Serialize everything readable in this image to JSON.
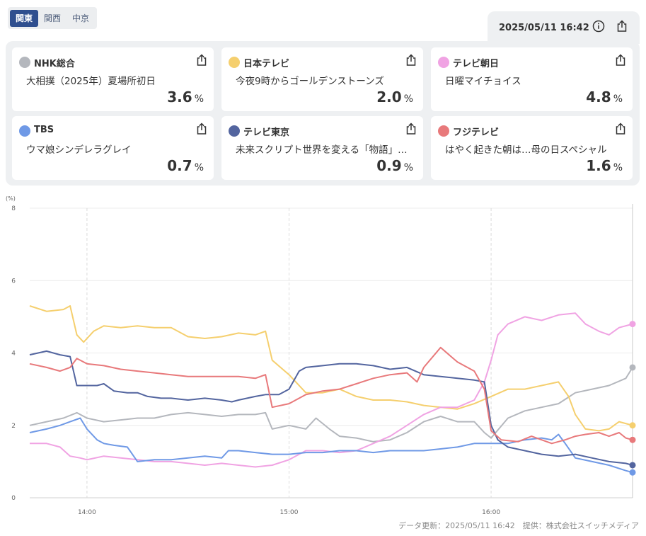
{
  "regions": [
    {
      "label": "関東",
      "active": true
    },
    {
      "label": "関西",
      "active": false
    },
    {
      "label": "中京",
      "active": false
    }
  ],
  "timestamp": "2025/05/11 16:42",
  "icons": {
    "info": "info-icon",
    "share": "share-icon"
  },
  "channels": [
    {
      "name": "NHK総合",
      "program": "大相撲（2025年）夏場所初日",
      "rating": "3.6",
      "color": "#b4b7bd"
    },
    {
      "name": "日本テレビ",
      "program": "今夜9時からゴールデンストーンズ",
      "rating": "2.0",
      "color": "#f5cf6e"
    },
    {
      "name": "テレビ朝日",
      "program": "日曜マイチョイス",
      "rating": "4.8",
      "color": "#f0a3e3"
    },
    {
      "name": "TBS",
      "program": "ウマ娘シンデレラグレイ",
      "rating": "0.7",
      "color": "#6f99e6"
    },
    {
      "name": "テレビ東京",
      "program": "未来スクリプト世界を変える「物語」…",
      "rating": "0.9",
      "color": "#53659f"
    },
    {
      "name": "フジテレビ",
      "program": "はやく起きた朝は…母の日スペシャル",
      "rating": "1.6",
      "color": "#e8797b"
    }
  ],
  "pct_unit": "%",
  "footer": "データ更新：2025/05/11 16:42　提供：株式会社スイッチメディア",
  "chart_data": {
    "type": "line",
    "unit_label": "(%)",
    "ylim": [
      0,
      8
    ],
    "yticks": [
      "0",
      "2",
      "4",
      "6",
      "8"
    ],
    "xticks": [
      {
        "t": 840,
        "label": "14:00"
      },
      {
        "t": 900,
        "label": "15:00"
      },
      {
        "t": 960,
        "label": "16:00"
      }
    ],
    "xrange": [
      "13:43",
      "16:42"
    ],
    "grid": true,
    "series": [
      {
        "name": "NHK総合",
        "color": "#b4b7bd",
        "points": [
          [
            "13:43",
            2.0
          ],
          [
            "13:48",
            2.1
          ],
          [
            "13:53",
            2.2
          ],
          [
            "13:57",
            2.35
          ],
          [
            "14:00",
            2.2
          ],
          [
            "14:05",
            2.1
          ],
          [
            "14:10",
            2.15
          ],
          [
            "14:15",
            2.2
          ],
          [
            "14:20",
            2.2
          ],
          [
            "14:25",
            2.3
          ],
          [
            "14:30",
            2.35
          ],
          [
            "14:35",
            2.3
          ],
          [
            "14:40",
            2.25
          ],
          [
            "14:45",
            2.3
          ],
          [
            "14:50",
            2.3
          ],
          [
            "14:53",
            2.35
          ],
          [
            "14:55",
            1.9
          ],
          [
            "15:00",
            2.0
          ],
          [
            "15:05",
            1.9
          ],
          [
            "15:08",
            2.2
          ],
          [
            "15:12",
            1.9
          ],
          [
            "15:15",
            1.7
          ],
          [
            "15:20",
            1.65
          ],
          [
            "15:25",
            1.55
          ],
          [
            "15:30",
            1.6
          ],
          [
            "15:35",
            1.8
          ],
          [
            "15:40",
            2.1
          ],
          [
            "15:45",
            2.25
          ],
          [
            "15:50",
            2.1
          ],
          [
            "15:55",
            2.1
          ],
          [
            "15:58",
            1.8
          ],
          [
            "16:00",
            1.65
          ],
          [
            "16:05",
            2.2
          ],
          [
            "16:10",
            2.4
          ],
          [
            "16:15",
            2.5
          ],
          [
            "16:20",
            2.6
          ],
          [
            "16:25",
            2.9
          ],
          [
            "16:30",
            3.0
          ],
          [
            "16:35",
            3.1
          ],
          [
            "16:40",
            3.3
          ],
          [
            "16:42",
            3.6
          ]
        ]
      },
      {
        "name": "日本テレビ",
        "color": "#f5cf6e",
        "points": [
          [
            "13:43",
            5.3
          ],
          [
            "13:48",
            5.15
          ],
          [
            "13:53",
            5.2
          ],
          [
            "13:55",
            5.3
          ],
          [
            "13:57",
            4.5
          ],
          [
            "13:59",
            4.3
          ],
          [
            "14:02",
            4.6
          ],
          [
            "14:05",
            4.75
          ],
          [
            "14:10",
            4.7
          ],
          [
            "14:15",
            4.75
          ],
          [
            "14:20",
            4.7
          ],
          [
            "14:25",
            4.7
          ],
          [
            "14:30",
            4.45
          ],
          [
            "14:35",
            4.4
          ],
          [
            "14:40",
            4.45
          ],
          [
            "14:45",
            4.55
          ],
          [
            "14:50",
            4.5
          ],
          [
            "14:53",
            4.6
          ],
          [
            "14:55",
            3.8
          ],
          [
            "15:00",
            3.4
          ],
          [
            "15:05",
            2.9
          ],
          [
            "15:10",
            2.9
          ],
          [
            "15:15",
            3.0
          ],
          [
            "15:20",
            2.8
          ],
          [
            "15:25",
            2.7
          ],
          [
            "15:30",
            2.7
          ],
          [
            "15:35",
            2.65
          ],
          [
            "15:40",
            2.55
          ],
          [
            "15:45",
            2.5
          ],
          [
            "15:50",
            2.45
          ],
          [
            "15:55",
            2.6
          ],
          [
            "16:00",
            2.8
          ],
          [
            "16:05",
            3.0
          ],
          [
            "16:10",
            3.0
          ],
          [
            "16:15",
            3.1
          ],
          [
            "16:20",
            3.2
          ],
          [
            "16:23",
            2.8
          ],
          [
            "16:25",
            2.3
          ],
          [
            "16:28",
            1.9
          ],
          [
            "16:32",
            1.85
          ],
          [
            "16:35",
            1.9
          ],
          [
            "16:38",
            2.1
          ],
          [
            "16:42",
            2.0
          ]
        ]
      },
      {
        "name": "テレビ朝日",
        "color": "#f0a3e3",
        "points": [
          [
            "13:43",
            1.5
          ],
          [
            "13:48",
            1.5
          ],
          [
            "13:52",
            1.4
          ],
          [
            "13:55",
            1.15
          ],
          [
            "13:58",
            1.1
          ],
          [
            "14:00",
            1.05
          ],
          [
            "14:05",
            1.15
          ],
          [
            "14:10",
            1.1
          ],
          [
            "14:15",
            1.05
          ],
          [
            "14:20",
            1.0
          ],
          [
            "14:25",
            1.0
          ],
          [
            "14:30",
            0.95
          ],
          [
            "14:35",
            0.9
          ],
          [
            "14:40",
            0.95
          ],
          [
            "14:45",
            0.9
          ],
          [
            "14:50",
            0.85
          ],
          [
            "14:55",
            0.9
          ],
          [
            "15:00",
            1.05
          ],
          [
            "15:05",
            1.3
          ],
          [
            "15:10",
            1.3
          ],
          [
            "15:15",
            1.25
          ],
          [
            "15:20",
            1.3
          ],
          [
            "15:25",
            1.5
          ],
          [
            "15:30",
            1.7
          ],
          [
            "15:35",
            2.0
          ],
          [
            "15:40",
            2.3
          ],
          [
            "15:45",
            2.5
          ],
          [
            "15:50",
            2.5
          ],
          [
            "15:55",
            2.7
          ],
          [
            "15:58",
            3.2
          ],
          [
            "16:00",
            3.8
          ],
          [
            "16:02",
            4.5
          ],
          [
            "16:05",
            4.8
          ],
          [
            "16:10",
            5.0
          ],
          [
            "16:15",
            4.9
          ],
          [
            "16:20",
            5.05
          ],
          [
            "16:25",
            5.1
          ],
          [
            "16:28",
            4.8
          ],
          [
            "16:32",
            4.6
          ],
          [
            "16:35",
            4.5
          ],
          [
            "16:38",
            4.7
          ],
          [
            "16:42",
            4.8
          ]
        ]
      },
      {
        "name": "TBS",
        "color": "#6f99e6",
        "points": [
          [
            "13:43",
            1.8
          ],
          [
            "13:48",
            1.9
          ],
          [
            "13:52",
            2.0
          ],
          [
            "13:55",
            2.1
          ],
          [
            "13:58",
            2.2
          ],
          [
            "14:00",
            1.9
          ],
          [
            "14:03",
            1.6
          ],
          [
            "14:05",
            1.5
          ],
          [
            "14:08",
            1.45
          ],
          [
            "14:12",
            1.4
          ],
          [
            "14:15",
            1.0
          ],
          [
            "14:20",
            1.05
          ],
          [
            "14:25",
            1.05
          ],
          [
            "14:30",
            1.1
          ],
          [
            "14:35",
            1.15
          ],
          [
            "14:40",
            1.1
          ],
          [
            "14:42",
            1.3
          ],
          [
            "14:45",
            1.3
          ],
          [
            "14:50",
            1.25
          ],
          [
            "14:55",
            1.2
          ],
          [
            "15:00",
            1.2
          ],
          [
            "15:05",
            1.25
          ],
          [
            "15:10",
            1.25
          ],
          [
            "15:15",
            1.3
          ],
          [
            "15:20",
            1.3
          ],
          [
            "15:25",
            1.25
          ],
          [
            "15:30",
            1.3
          ],
          [
            "15:35",
            1.3
          ],
          [
            "15:40",
            1.3
          ],
          [
            "15:45",
            1.35
          ],
          [
            "15:50",
            1.4
          ],
          [
            "15:55",
            1.5
          ],
          [
            "16:00",
            1.5
          ],
          [
            "16:05",
            1.5
          ],
          [
            "16:10",
            1.6
          ],
          [
            "16:15",
            1.65
          ],
          [
            "16:18",
            1.6
          ],
          [
            "16:20",
            1.75
          ],
          [
            "16:22",
            1.5
          ],
          [
            "16:25",
            1.1
          ],
          [
            "16:30",
            1.0
          ],
          [
            "16:35",
            0.9
          ],
          [
            "16:40",
            0.75
          ],
          [
            "16:42",
            0.7
          ]
        ]
      },
      {
        "name": "テレビ東京",
        "color": "#53659f",
        "points": [
          [
            "13:43",
            3.95
          ],
          [
            "13:48",
            4.05
          ],
          [
            "13:52",
            3.95
          ],
          [
            "13:55",
            3.9
          ],
          [
            "13:57",
            3.1
          ],
          [
            "14:00",
            3.1
          ],
          [
            "14:03",
            3.1
          ],
          [
            "14:05",
            3.15
          ],
          [
            "14:08",
            2.95
          ],
          [
            "14:12",
            2.9
          ],
          [
            "14:15",
            2.9
          ],
          [
            "14:18",
            2.8
          ],
          [
            "14:22",
            2.75
          ],
          [
            "14:25",
            2.75
          ],
          [
            "14:30",
            2.7
          ],
          [
            "14:35",
            2.75
          ],
          [
            "14:40",
            2.7
          ],
          [
            "14:43",
            2.65
          ],
          [
            "14:45",
            2.7
          ],
          [
            "14:50",
            2.8
          ],
          [
            "14:53",
            2.85
          ],
          [
            "14:57",
            2.85
          ],
          [
            "15:00",
            3.0
          ],
          [
            "15:03",
            3.5
          ],
          [
            "15:05",
            3.6
          ],
          [
            "15:10",
            3.65
          ],
          [
            "15:15",
            3.7
          ],
          [
            "15:20",
            3.7
          ],
          [
            "15:25",
            3.65
          ],
          [
            "15:30",
            3.55
          ],
          [
            "15:35",
            3.6
          ],
          [
            "15:40",
            3.4
          ],
          [
            "15:45",
            3.35
          ],
          [
            "15:50",
            3.3
          ],
          [
            "15:55",
            3.25
          ],
          [
            "15:58",
            3.2
          ],
          [
            "16:00",
            2.0
          ],
          [
            "16:02",
            1.6
          ],
          [
            "16:05",
            1.4
          ],
          [
            "16:10",
            1.3
          ],
          [
            "16:15",
            1.2
          ],
          [
            "16:20",
            1.15
          ],
          [
            "16:25",
            1.2
          ],
          [
            "16:30",
            1.1
          ],
          [
            "16:35",
            1.0
          ],
          [
            "16:40",
            0.95
          ],
          [
            "16:42",
            0.9
          ]
        ]
      },
      {
        "name": "フジテレビ",
        "color": "#e8797b",
        "points": [
          [
            "13:43",
            3.7
          ],
          [
            "13:48",
            3.6
          ],
          [
            "13:52",
            3.5
          ],
          [
            "13:55",
            3.6
          ],
          [
            "13:57",
            3.85
          ],
          [
            "14:00",
            3.7
          ],
          [
            "14:05",
            3.65
          ],
          [
            "14:10",
            3.55
          ],
          [
            "14:15",
            3.5
          ],
          [
            "14:20",
            3.45
          ],
          [
            "14:25",
            3.4
          ],
          [
            "14:30",
            3.35
          ],
          [
            "14:35",
            3.35
          ],
          [
            "14:40",
            3.35
          ],
          [
            "14:45",
            3.35
          ],
          [
            "14:50",
            3.3
          ],
          [
            "14:53",
            3.4
          ],
          [
            "14:55",
            2.5
          ],
          [
            "15:00",
            2.6
          ],
          [
            "15:05",
            2.85
          ],
          [
            "15:10",
            2.95
          ],
          [
            "15:15",
            3.0
          ],
          [
            "15:20",
            3.15
          ],
          [
            "15:25",
            3.3
          ],
          [
            "15:30",
            3.4
          ],
          [
            "15:35",
            3.45
          ],
          [
            "15:38",
            3.2
          ],
          [
            "15:40",
            3.6
          ],
          [
            "15:45",
            4.15
          ],
          [
            "15:50",
            3.75
          ],
          [
            "15:55",
            3.5
          ],
          [
            "15:58",
            3.0
          ],
          [
            "16:00",
            1.85
          ],
          [
            "16:03",
            1.6
          ],
          [
            "16:08",
            1.55
          ],
          [
            "16:12",
            1.7
          ],
          [
            "16:18",
            1.5
          ],
          [
            "16:22",
            1.6
          ],
          [
            "16:25",
            1.7
          ],
          [
            "16:28",
            1.75
          ],
          [
            "16:32",
            1.8
          ],
          [
            "16:35",
            1.7
          ],
          [
            "16:38",
            1.8
          ],
          [
            "16:40",
            1.65
          ],
          [
            "16:42",
            1.6
          ]
        ]
      }
    ]
  }
}
